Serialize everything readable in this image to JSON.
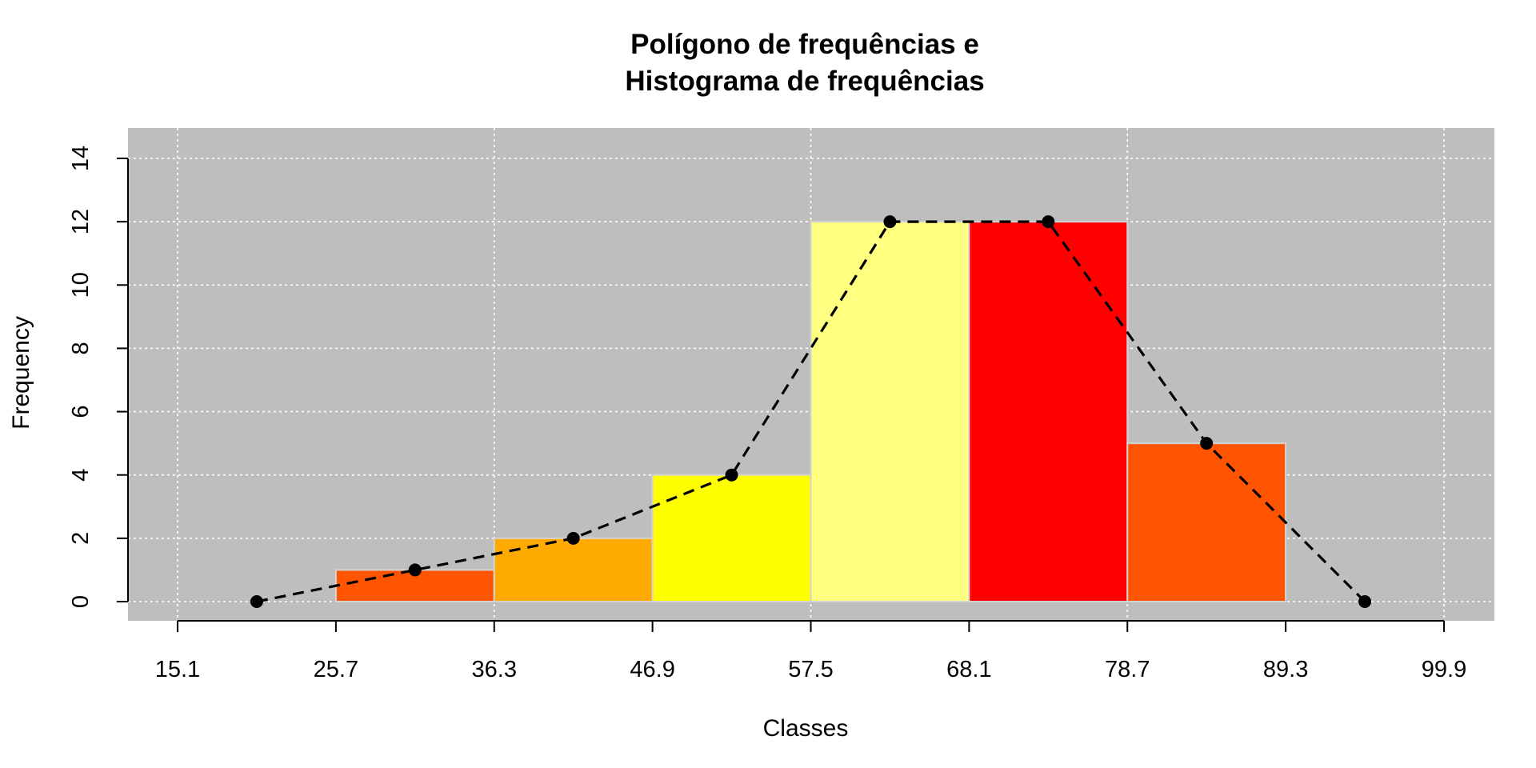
{
  "chart_data": {
    "type": "bar",
    "title_lines": [
      "Polígono de frequências e",
      "Histograma de frequências"
    ],
    "xlabel": "Classes",
    "ylabel": "Frequency",
    "x_ticks": [
      "15.1",
      "25.7",
      "36.3",
      "46.9",
      "57.5",
      "68.1",
      "78.7",
      "89.3",
      "99.9"
    ],
    "y_ticks": [
      "0",
      "2",
      "4",
      "6",
      "8",
      "10",
      "12",
      "14"
    ],
    "xlim": [
      15.1,
      99.9
    ],
    "ylim": [
      0,
      14
    ],
    "grid": true,
    "background_color": "#bebebe",
    "histogram": {
      "bins": [
        {
          "from": 25.7,
          "to": 36.3,
          "frequency": 1,
          "color": "#ff5500"
        },
        {
          "from": 36.3,
          "to": 46.9,
          "frequency": 2,
          "color": "#ffaa00"
        },
        {
          "from": 46.9,
          "to": 57.5,
          "frequency": 4,
          "color": "#ffff00"
        },
        {
          "from": 57.5,
          "to": 68.1,
          "frequency": 12,
          "color": "#ffff80"
        },
        {
          "from": 68.1,
          "to": 78.7,
          "frequency": 12,
          "color": "#ff0000"
        },
        {
          "from": 78.7,
          "to": 89.3,
          "frequency": 5,
          "color": "#ff5500"
        }
      ]
    },
    "polygon": {
      "style": "dashed",
      "points": [
        {
          "x": 20.4,
          "y": 0
        },
        {
          "x": 31.0,
          "y": 1
        },
        {
          "x": 41.6,
          "y": 2
        },
        {
          "x": 52.2,
          "y": 4
        },
        {
          "x": 62.8,
          "y": 12
        },
        {
          "x": 73.4,
          "y": 12
        },
        {
          "x": 84.0,
          "y": 5
        },
        {
          "x": 94.6,
          "y": 0
        }
      ]
    }
  }
}
